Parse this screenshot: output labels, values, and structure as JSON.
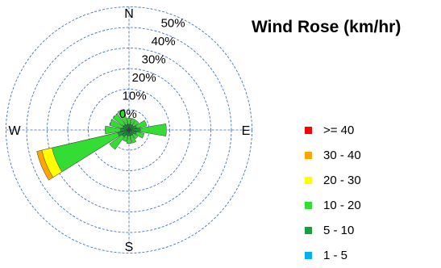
{
  "chart_data": {
    "type": "wind-rose",
    "title": "Wind Rose (km/hr)",
    "directions": [
      "N",
      "NNE",
      "NE",
      "ENE",
      "E",
      "ESE",
      "SE",
      "SSE",
      "S",
      "SSW",
      "SW",
      "WSW",
      "W",
      "WNW",
      "NW",
      "NNW"
    ],
    "compass_labels": {
      "N": "N",
      "E": "E",
      "S": "S",
      "W": "W"
    },
    "radial_axis": {
      "ticks": [
        0,
        10,
        20,
        30,
        40,
        50
      ],
      "tick_labels": [
        "0%",
        "10%",
        "20%",
        "30%",
        "40%",
        "50%"
      ],
      "max": 50,
      "grid": true
    },
    "speed_bins": [
      {
        "name": ">= 40",
        "color": "#ff0000"
      },
      {
        "name": "30 - 40",
        "color": "#ffa500"
      },
      {
        "name": "20 - 30",
        "color": "#ffff00"
      },
      {
        "name": "10 - 20",
        "color": "#33dd33"
      },
      {
        "name": "5 - 10",
        "color": "#14a03c"
      },
      {
        "name": "1 - 5",
        "color": "#00b0f0"
      }
    ],
    "series": [
      {
        "name": "1 - 5",
        "values": [
          0.3,
          0.3,
          0.3,
          0.3,
          0.4,
          0.3,
          0.3,
          0.3,
          0.3,
          0.3,
          0.4,
          0.4,
          0.4,
          0.3,
          0.3,
          0.3
        ]
      },
      {
        "name": "5 - 10",
        "values": [
          0.8,
          0.8,
          0.8,
          1.2,
          1.8,
          1.2,
          0.8,
          0.8,
          0.8,
          0.8,
          1.2,
          1.8,
          1.2,
          1.0,
          1.0,
          0.8
        ]
      },
      {
        "name": "10 - 20",
        "values": [
          1.2,
          1.2,
          1.2,
          2.0,
          5.0,
          1.5,
          1.0,
          1.5,
          1.5,
          1.2,
          3.0,
          13.0,
          3.0,
          2.5,
          2.5,
          3.0
        ]
      },
      {
        "name": "20 - 30",
        "values": [
          0,
          0,
          0,
          0,
          0,
          0,
          0,
          0,
          0,
          0,
          0,
          2.0,
          0,
          0,
          0,
          0
        ]
      },
      {
        "name": "30 - 40",
        "values": [
          0,
          0,
          0,
          0,
          0,
          0,
          0,
          0,
          0,
          0,
          0,
          1.0,
          0,
          0,
          0,
          0
        ]
      },
      {
        "name": ">= 40",
        "values": [
          0,
          0,
          0,
          0,
          0,
          0,
          0,
          0,
          0,
          0,
          0,
          0,
          0,
          0,
          0,
          0
        ]
      }
    ],
    "legend_position": "right"
  }
}
